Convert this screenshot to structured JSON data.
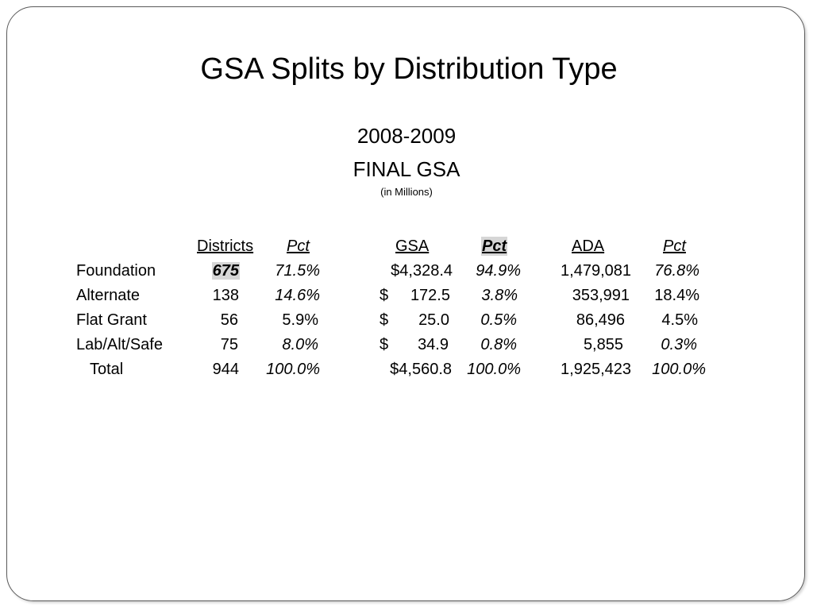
{
  "title": "GSA Splits by Distribution Type",
  "subtitle": {
    "line1": "2008-2009",
    "line2": "FINAL GSA",
    "line3": "(in Millions)"
  },
  "table": {
    "headers": {
      "districts": "Districts",
      "pct1": "Pct",
      "gsa": "GSA",
      "pct2": "Pct",
      "ada": "ADA",
      "pct3": "Pct"
    },
    "rows": [
      {
        "label": "Foundation",
        "districts": "675",
        "pct1": "71.5%",
        "gsa_cur": "",
        "gsa": "$4,328.4",
        "pct2": "94.9%",
        "ada": "1,479,081",
        "pct3": "76.8%"
      },
      {
        "label": "Alternate",
        "districts": "138",
        "pct1": "14.6%",
        "gsa_cur": "$",
        "gsa": "172.5",
        "pct2": "3.8%",
        "ada": "353,991",
        "pct3": "18.4%"
      },
      {
        "label": "Flat Grant",
        "districts": "56",
        "pct1": "5.9%",
        "gsa_cur": "$",
        "gsa": "25.0",
        "pct2": "0.5%",
        "ada": "86,496",
        "pct3": "4.5%"
      },
      {
        "label": "Lab/Alt/Safe",
        "districts": "75",
        "pct1": "8.0%",
        "gsa_cur": "$",
        "gsa": "34.9",
        "pct2": "0.8%",
        "ada": "5,855",
        "pct3": "0.3%"
      },
      {
        "label": "Total",
        "districts": "944",
        "pct1": "100.0%",
        "gsa_cur": "",
        "gsa": "$4,560.8",
        "pct2": "100.0%",
        "ada": "1,925,423",
        "pct3": "100.0%"
      }
    ]
  }
}
